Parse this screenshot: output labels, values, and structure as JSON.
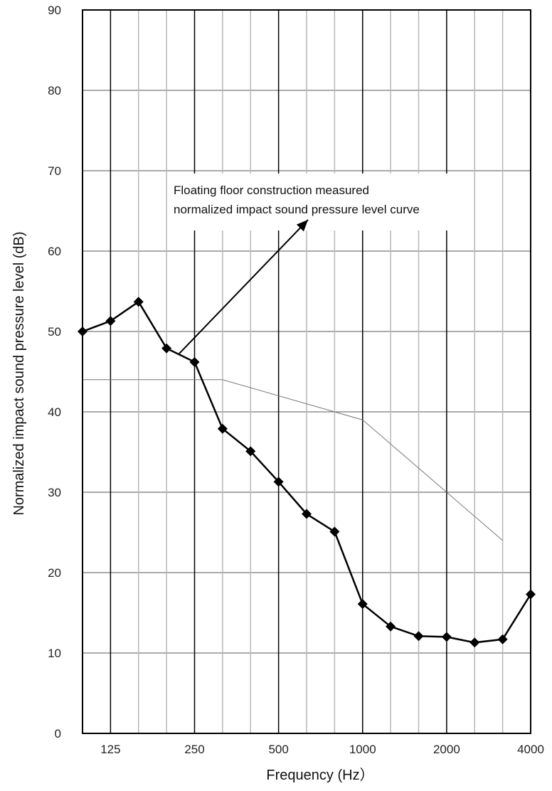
{
  "chart_data": {
    "type": "line",
    "xlabel": "Frequency (Hz）",
    "ylabel": "Normalized  impact sound pressure  level (dB)",
    "ylim": [
      0,
      90
    ],
    "y_ticks": [
      "0",
      "10",
      "20",
      "30",
      "40",
      "50",
      "60",
      "70",
      "80",
      "90"
    ],
    "x_scale": "log (1/3 octave bands)",
    "x_labeled_ticks": [
      "125",
      "250",
      "500",
      "1000",
      "2000",
      "4000"
    ],
    "x": [
      100,
      125,
      160,
      200,
      250,
      315,
      400,
      500,
      630,
      800,
      1000,
      1250,
      1600,
      2000,
      2500,
      3150,
      4000
    ],
    "grid": true,
    "series": [
      {
        "values": [
          50.0,
          51.3,
          53.7,
          47.9,
          46.2,
          37.9,
          35.1,
          31.3,
          27.3,
          25.1,
          16.1,
          13.3,
          12.1,
          12.0,
          11.3,
          11.7,
          17.3
        ],
        "color": "#000000",
        "marker": "diamond"
      },
      {
        "x": [
          100,
          315,
          1000,
          2000,
          3150
        ],
        "values": [
          44,
          44,
          39,
          30,
          24
        ],
        "color": "#777777",
        "marker": "none"
      }
    ],
    "annotation": {
      "lines": [
        "Floating floor construction measured",
        "normalized impact sound pressure level curve"
      ]
    }
  }
}
